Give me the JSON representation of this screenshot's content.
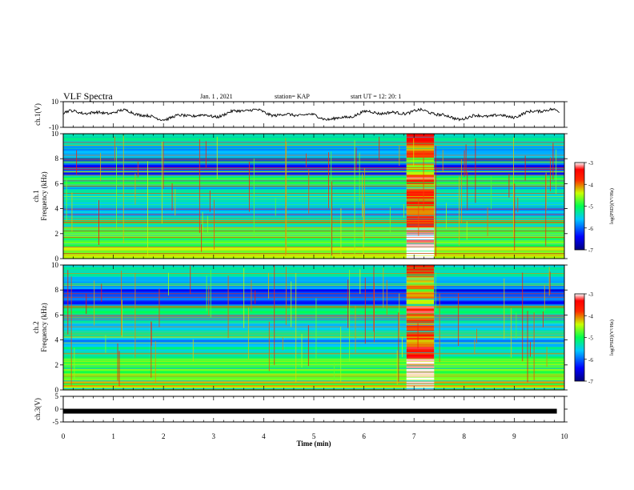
{
  "header": {
    "title": "VLF Spectra",
    "date": "Jan. 1 , 2021",
    "station": "station= KAP",
    "start": "start  UT =   12: 20: 1"
  },
  "chart_data": [
    {
      "type": "line",
      "ylabel": "ch.1(V)",
      "ylim": [
        -10,
        10
      ],
      "yticks": [
        "10",
        "-10"
      ],
      "xlim": [
        0,
        10
      ],
      "description_series": "signal oscillates around 0 V within about -4 to 4 V"
    },
    {
      "type": "heatmap",
      "ylabel_line1": "ch.1",
      "ylabel_line2": "Frequency (kHz)",
      "ylim": [
        0,
        10
      ],
      "yticks": [
        "0",
        "2",
        "4",
        "6",
        "8",
        "10"
      ],
      "xlim": [
        0,
        10
      ],
      "colorbar": {
        "label": "log(PSD)(V²/Hz)",
        "ticks": [
          "-3",
          "-4",
          "-5",
          "-6",
          "-7"
        ],
        "range": [
          -7,
          -3
        ]
      },
      "burst_interval_min": [
        6.85,
        7.4
      ]
    },
    {
      "type": "heatmap",
      "ylabel_line1": "ch.2",
      "ylabel_line2": "Frequency (kHz)",
      "ylim": [
        0,
        10
      ],
      "yticks": [
        "0",
        "2",
        "4",
        "6",
        "8",
        "10"
      ],
      "xlim": [
        0,
        10
      ],
      "colorbar": {
        "label": "log(PSD)(V²/Hz)",
        "ticks": [
          "-3",
          "-4",
          "-5",
          "-6",
          "-7"
        ],
        "range": [
          -7,
          -3
        ]
      },
      "burst_interval_min": [
        6.85,
        7.4
      ]
    },
    {
      "type": "line",
      "ylabel": "ch.3(V)",
      "ylim": [
        -5,
        5
      ],
      "yticks": [
        "5",
        "0",
        "-5"
      ],
      "xlim": [
        0,
        10
      ],
      "level": -0.8
    }
  ],
  "xaxis": {
    "label": "Time  (min)",
    "ticks": [
      "0",
      "1",
      "2",
      "3",
      "4",
      "5",
      "6",
      "7",
      "8",
      "9",
      "10"
    ]
  },
  "colors": {
    "trace": "#000000",
    "colormap": [
      "#00007f",
      "#0000ff",
      "#00ffff",
      "#00ff00",
      "#ffff00",
      "#ff0000",
      "#ffffff"
    ]
  }
}
